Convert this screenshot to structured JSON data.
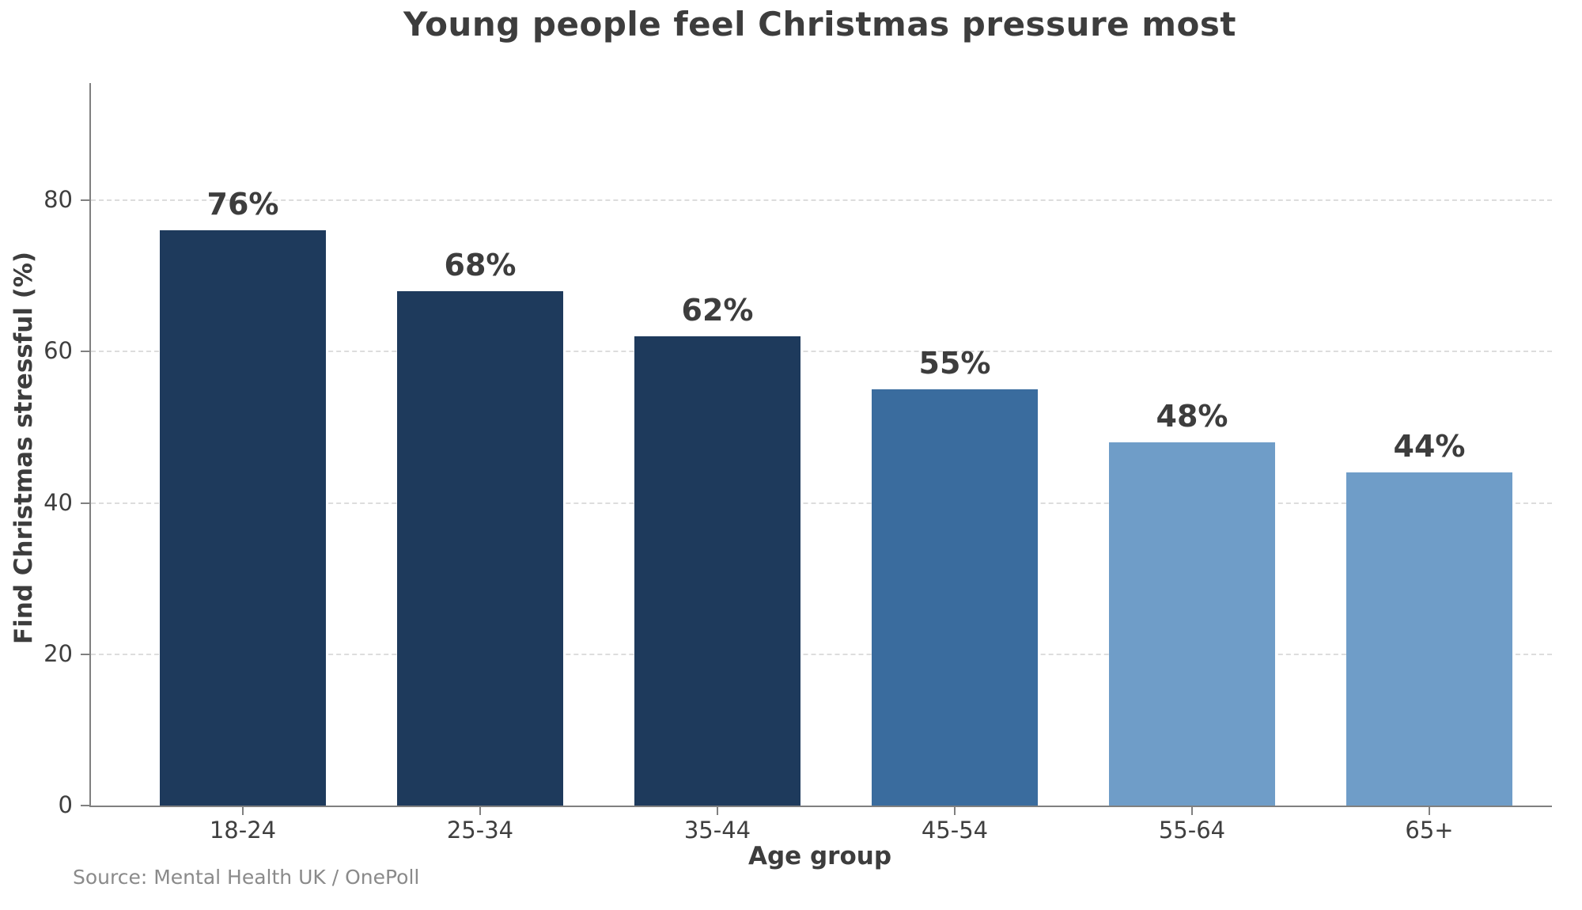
{
  "title": "Young people feel Christmas pressure most",
  "source_note": "Source: Mental Health UK / OnePoll",
  "chart_data": {
    "type": "bar",
    "title": "Young people feel Christmas pressure most",
    "categories": [
      "18-24",
      "25-34",
      "35-44",
      "45-54",
      "55-64",
      "65+"
    ],
    "values": [
      76,
      68,
      62,
      55,
      48,
      44
    ],
    "value_labels": [
      "76%",
      "68%",
      "62%",
      "55%",
      "48%",
      "44%"
    ],
    "bar_colors": [
      "#1e3a5c",
      "#1e3a5c",
      "#1e3a5c",
      "#3a6c9e",
      "#6f9dc8",
      "#6f9dc8"
    ],
    "xlabel": "Age group",
    "ylabel": "Find Christmas stressful (%)",
    "ylim": [
      0,
      95.5
    ],
    "yticks": [
      0,
      20,
      40,
      60,
      80
    ],
    "grid": "horizontal-dashed",
    "legend": "none",
    "annotation": "Source: Mental Health UK / OnePoll",
    "colors": {
      "text_dark": "#3d3d3d",
      "tick_label": "#3f3f3f",
      "source_gray": "#8a8a8a",
      "spine_gray": "#808080",
      "grid_gray": "#dddddd",
      "background": "#ffffff"
    }
  }
}
